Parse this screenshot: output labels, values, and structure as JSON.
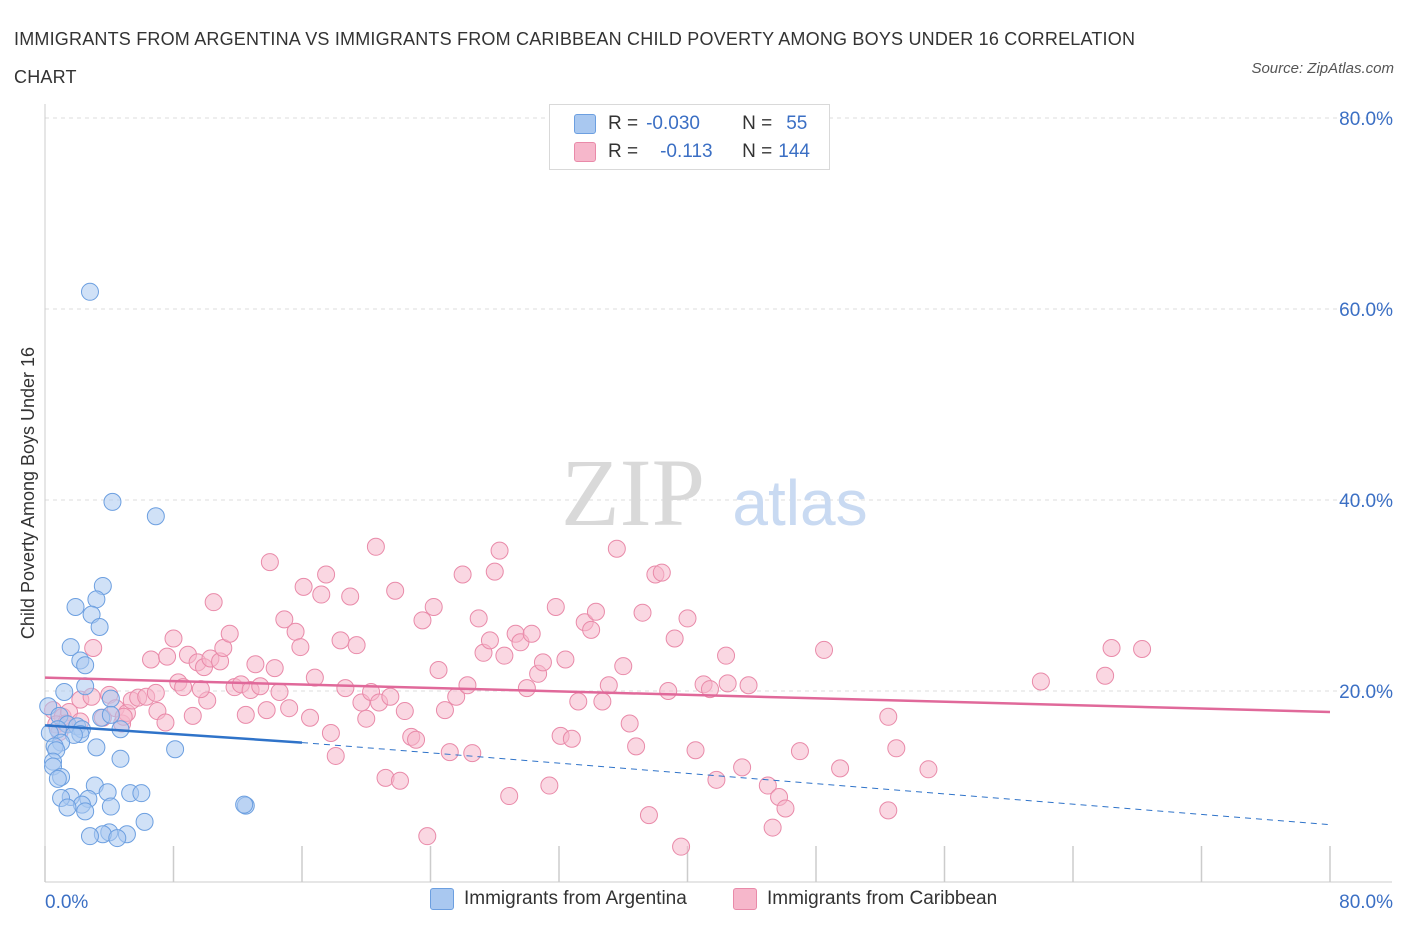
{
  "title": "IMMIGRANTS FROM ARGENTINA VS IMMIGRANTS FROM CARIBBEAN CHILD POVERTY AMONG BOYS UNDER 16 CORRELATION CHART",
  "source": "Source: ZipAtlas.com",
  "watermark": {
    "zip": "ZIP",
    "atlas": "atlas"
  },
  "legend": {
    "r_label": "R =",
    "n_label": "N =",
    "series": [
      {
        "name": "Immigrants from Argentina",
        "r": "-0.030",
        "n": "55"
      },
      {
        "name": "Immigrants from Caribbean",
        "r": "-0.113",
        "n": "144"
      }
    ]
  },
  "colors": {
    "argentina_fill": "#a9c8f0",
    "argentina_stroke": "#6c9fe0",
    "argentina_line": "#2f73c9",
    "caribbean_fill": "#f6b7cb",
    "caribbean_stroke": "#e98aa9",
    "caribbean_line": "#e0699a",
    "axis_text": "#3b6fc4"
  },
  "chart_data": {
    "type": "scatter",
    "title": "IMMIGRANTS FROM ARGENTINA VS IMMIGRANTS FROM CARIBBEAN CHILD POVERTY AMONG BOYS UNDER 16 CORRELATION CHART",
    "xlabel": "",
    "ylabel": "Child Poverty Among Boys Under 16",
    "xlim": [
      0,
      80
    ],
    "ylim": [
      0,
      80
    ],
    "x_tick_labels": [
      "0.0%",
      "80.0%"
    ],
    "y_tick_labels": [
      {
        "value": 20,
        "label": "20.0%"
      },
      {
        "value": 40,
        "label": "40.0%"
      },
      {
        "value": 60,
        "label": "60.0%"
      },
      {
        "value": 80,
        "label": "80.0%"
      }
    ],
    "grid": true,
    "legend_position": "top-center",
    "series": [
      {
        "name": "Immigrants from Argentina",
        "trend": {
          "x0": 0,
          "y0": 16.4,
          "x1": 16,
          "y1": 14.6,
          "dashed_to_x": 80,
          "dashed_to_y": 6.0
        },
        "points": [
          [
            2.8,
            61.8
          ],
          [
            4.2,
            39.8
          ],
          [
            6.9,
            38.3
          ],
          [
            3.6,
            31.0
          ],
          [
            3.2,
            29.6
          ],
          [
            1.9,
            28.8
          ],
          [
            2.9,
            28.0
          ],
          [
            3.4,
            26.7
          ],
          [
            1.6,
            24.6
          ],
          [
            2.2,
            23.2
          ],
          [
            2.5,
            22.7
          ],
          [
            2.5,
            20.5
          ],
          [
            1.2,
            19.9
          ],
          [
            4.1,
            19.2
          ],
          [
            0.2,
            18.4
          ],
          [
            0.9,
            17.4
          ],
          [
            3.5,
            17.2
          ],
          [
            4.1,
            17.5
          ],
          [
            1.4,
            16.5
          ],
          [
            2.0,
            16.3
          ],
          [
            2.3,
            16.0
          ],
          [
            0.8,
            16.0
          ],
          [
            0.3,
            15.6
          ],
          [
            2.2,
            15.5
          ],
          [
            1.8,
            15.4
          ],
          [
            4.7,
            16.0
          ],
          [
            1.0,
            14.6
          ],
          [
            0.6,
            14.2
          ],
          [
            0.7,
            13.8
          ],
          [
            3.2,
            14.1
          ],
          [
            8.1,
            13.9
          ],
          [
            0.5,
            12.6
          ],
          [
            0.5,
            12.1
          ],
          [
            4.7,
            12.9
          ],
          [
            1.0,
            11.0
          ],
          [
            0.8,
            10.8
          ],
          [
            3.1,
            10.1
          ],
          [
            1.6,
            8.9
          ],
          [
            2.7,
            8.7
          ],
          [
            1.0,
            8.8
          ],
          [
            5.3,
            9.3
          ],
          [
            3.9,
            9.4
          ],
          [
            6.0,
            9.3
          ],
          [
            2.3,
            8.1
          ],
          [
            1.4,
            7.8
          ],
          [
            4.1,
            7.9
          ],
          [
            12.5,
            8.0
          ],
          [
            12.4,
            8.1
          ],
          [
            2.5,
            7.4
          ],
          [
            6.2,
            6.3
          ],
          [
            4.0,
            5.2
          ],
          [
            5.1,
            5.0
          ],
          [
            3.6,
            5.0
          ],
          [
            4.5,
            4.6
          ],
          [
            2.8,
            4.8
          ]
        ]
      },
      {
        "name": "Immigrants from Caribbean",
        "trend": {
          "x0": 0,
          "y0": 21.4,
          "x1": 80,
          "y1": 17.8
        },
        "points": [
          [
            0.5,
            18.0
          ],
          [
            1.1,
            17.3
          ],
          [
            1.5,
            17.8
          ],
          [
            0.7,
            16.5
          ],
          [
            0.9,
            15.7
          ],
          [
            1.3,
            16.6
          ],
          [
            2.2,
            16.8
          ],
          [
            2.2,
            19.1
          ],
          [
            2.9,
            19.4
          ],
          [
            3.0,
            24.5
          ],
          [
            3.6,
            17.2
          ],
          [
            4.0,
            19.6
          ],
          [
            4.4,
            18.2
          ],
          [
            4.8,
            16.6
          ],
          [
            5.1,
            17.7
          ],
          [
            5.4,
            19.0
          ],
          [
            5.8,
            19.3
          ],
          [
            6.3,
            19.4
          ],
          [
            6.6,
            23.3
          ],
          [
            6.9,
            19.8
          ],
          [
            7.0,
            17.9
          ],
          [
            7.5,
            16.7
          ],
          [
            7.6,
            23.6
          ],
          [
            8.0,
            25.5
          ],
          [
            8.3,
            20.9
          ],
          [
            8.6,
            20.4
          ],
          [
            8.9,
            23.8
          ],
          [
            9.2,
            17.4
          ],
          [
            9.5,
            23.0
          ],
          [
            9.9,
            22.5
          ],
          [
            10.1,
            19.0
          ],
          [
            10.3,
            23.4
          ],
          [
            10.5,
            29.3
          ],
          [
            10.9,
            23.1
          ],
          [
            11.1,
            24.5
          ],
          [
            11.5,
            26.0
          ],
          [
            11.8,
            20.4
          ],
          [
            12.2,
            20.7
          ],
          [
            12.5,
            17.5
          ],
          [
            12.8,
            20.1
          ],
          [
            13.1,
            22.8
          ],
          [
            13.4,
            20.5
          ],
          [
            13.8,
            18.0
          ],
          [
            14.0,
            33.5
          ],
          [
            14.3,
            22.4
          ],
          [
            14.6,
            19.9
          ],
          [
            14.9,
            27.5
          ],
          [
            15.2,
            18.2
          ],
          [
            15.6,
            26.2
          ],
          [
            15.9,
            24.6
          ],
          [
            16.1,
            30.9
          ],
          [
            16.5,
            17.2
          ],
          [
            16.8,
            21.4
          ],
          [
            17.2,
            30.1
          ],
          [
            17.5,
            32.2
          ],
          [
            17.8,
            15.6
          ],
          [
            18.1,
            13.2
          ],
          [
            18.4,
            25.3
          ],
          [
            18.7,
            20.3
          ],
          [
            19.0,
            29.9
          ],
          [
            19.4,
            24.8
          ],
          [
            19.7,
            18.8
          ],
          [
            20.0,
            17.1
          ],
          [
            20.3,
            19.9
          ],
          [
            20.6,
            35.1
          ],
          [
            20.8,
            18.8
          ],
          [
            21.2,
            10.9
          ],
          [
            21.5,
            19.4
          ],
          [
            21.8,
            30.5
          ],
          [
            22.1,
            10.6
          ],
          [
            22.4,
            17.9
          ],
          [
            22.8,
            15.2
          ],
          [
            23.1,
            14.9
          ],
          [
            23.5,
            27.4
          ],
          [
            23.8,
            4.8
          ],
          [
            24.2,
            28.8
          ],
          [
            24.5,
            22.2
          ],
          [
            24.9,
            18.0
          ],
          [
            25.2,
            13.6
          ],
          [
            25.6,
            19.4
          ],
          [
            26.0,
            32.2
          ],
          [
            26.3,
            20.6
          ],
          [
            26.6,
            13.5
          ],
          [
            27.0,
            27.6
          ],
          [
            27.3,
            24.0
          ],
          [
            27.7,
            25.3
          ],
          [
            28.0,
            32.5
          ],
          [
            28.3,
            34.7
          ],
          [
            28.6,
            23.7
          ],
          [
            28.9,
            9.0
          ],
          [
            29.3,
            26.0
          ],
          [
            29.6,
            25.1
          ],
          [
            30.0,
            20.3
          ],
          [
            30.3,
            26.0
          ],
          [
            30.7,
            21.8
          ],
          [
            31.0,
            23.0
          ],
          [
            31.4,
            10.1
          ],
          [
            31.8,
            28.8
          ],
          [
            32.1,
            15.3
          ],
          [
            32.4,
            23.3
          ],
          [
            32.8,
            15.0
          ],
          [
            33.2,
            18.9
          ],
          [
            33.6,
            27.2
          ],
          [
            34.0,
            26.4
          ],
          [
            34.3,
            28.3
          ],
          [
            34.7,
            18.9
          ],
          [
            35.1,
            20.6
          ],
          [
            35.6,
            34.9
          ],
          [
            36.0,
            22.6
          ],
          [
            36.4,
            16.6
          ],
          [
            36.8,
            14.2
          ],
          [
            37.2,
            28.2
          ],
          [
            37.6,
            7.0
          ],
          [
            38.0,
            32.2
          ],
          [
            38.4,
            32.4
          ],
          [
            38.8,
            20.0
          ],
          [
            39.2,
            25.5
          ],
          [
            39.6,
            3.7
          ],
          [
            40.0,
            27.6
          ],
          [
            40.5,
            13.8
          ],
          [
            41.0,
            20.7
          ],
          [
            41.4,
            20.2
          ],
          [
            41.8,
            10.7
          ],
          [
            42.4,
            23.7
          ],
          [
            43.4,
            12.0
          ],
          [
            43.8,
            20.6
          ],
          [
            45.0,
            10.1
          ],
          [
            45.7,
            8.9
          ],
          [
            46.1,
            7.7
          ],
          [
            45.3,
            5.7
          ],
          [
            47.0,
            13.7
          ],
          [
            48.5,
            24.3
          ],
          [
            49.5,
            11.9
          ],
          [
            52.5,
            7.5
          ],
          [
            52.5,
            17.3
          ],
          [
            53.0,
            14.0
          ],
          [
            55.0,
            11.8
          ],
          [
            62.0,
            21.0
          ],
          [
            66.0,
            21.6
          ],
          [
            66.4,
            24.5
          ],
          [
            68.3,
            24.4
          ],
          [
            42.5,
            20.8
          ],
          [
            9.7,
            20.2
          ],
          [
            4.9,
            17.3
          ]
        ]
      }
    ]
  }
}
